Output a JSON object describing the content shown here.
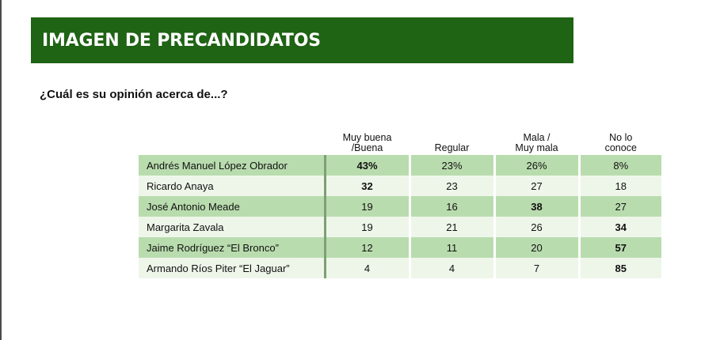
{
  "banner": {
    "title": "IMAGEN DE PRECANDIDATOS"
  },
  "question": "¿Cuál es su opinión acerca de...?",
  "columns": [
    {
      "line1": "Muy buena",
      "line2": "/Buena"
    },
    {
      "line1": "",
      "line2": "Regular"
    },
    {
      "line1": "Mala /",
      "line2": "Muy mala"
    },
    {
      "line1": "No lo",
      "line2": "conoce"
    }
  ],
  "rows": [
    {
      "name": "Andrés Manuel López Obrador",
      "values": [
        "43%",
        "23%",
        "26%",
        "8%"
      ],
      "bold": 0
    },
    {
      "name": "Ricardo Anaya",
      "values": [
        "32",
        "23",
        "27",
        "18"
      ],
      "bold": 0
    },
    {
      "name": "José Antonio Meade",
      "values": [
        "19",
        "16",
        "38",
        "27"
      ],
      "bold": 2
    },
    {
      "name": "Margarita Zavala",
      "values": [
        "19",
        "21",
        "26",
        "34"
      ],
      "bold": 3
    },
    {
      "name": "Jaime Rodríguez “El Bronco”",
      "values": [
        "12",
        "11",
        "20",
        "57"
      ],
      "bold": 3
    },
    {
      "name": "Armando Ríos Piter “El Jaguar”",
      "values": [
        "4",
        "4",
        "7",
        "85"
      ],
      "bold": 3
    }
  ],
  "colors": {
    "banner": "#1f6314",
    "row_dark": "#b9dcae",
    "row_light": "#eef6ea"
  }
}
